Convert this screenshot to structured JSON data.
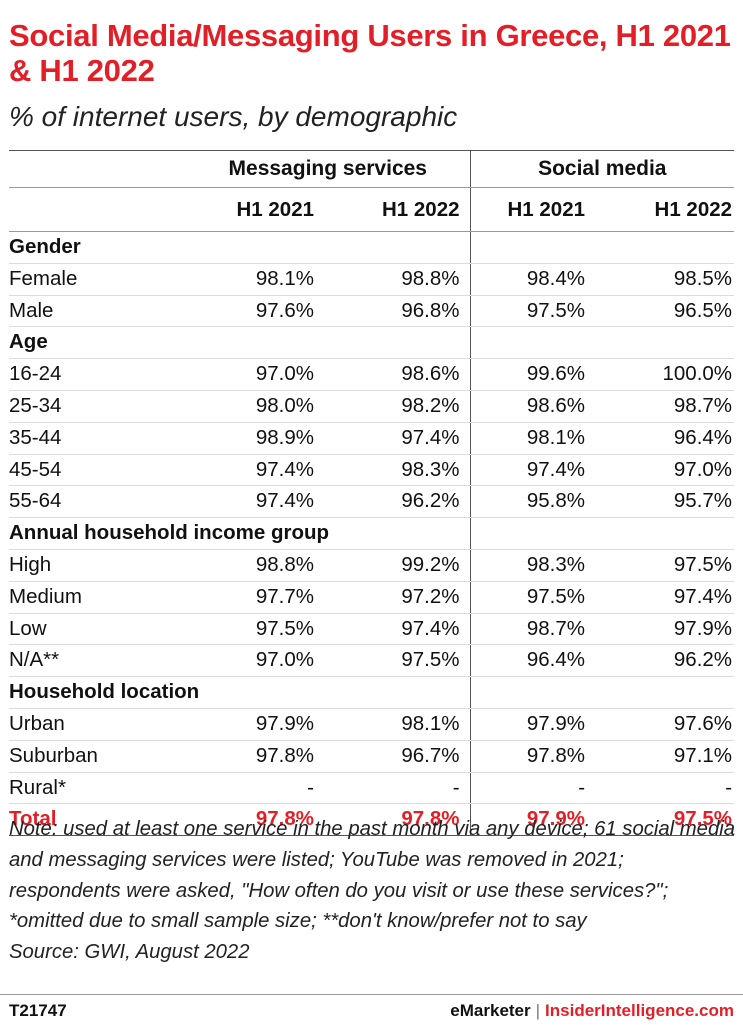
{
  "title": "Social Media/Messaging Users in Greece, H1 2021 & H1 2022",
  "subtitle": "% of internet users, by demographic",
  "chart_data": {
    "type": "table",
    "column_groups": [
      "Messaging services",
      "Social media"
    ],
    "periods": [
      "H1 2021",
      "H1 2022",
      "H1 2021",
      "H1 2022"
    ],
    "rows": [
      {
        "label": "Gender",
        "section": true
      },
      {
        "label": "Female",
        "values": [
          "98.1%",
          "98.8%",
          "98.4%",
          "98.5%"
        ]
      },
      {
        "label": "Male",
        "values": [
          "97.6%",
          "96.8%",
          "97.5%",
          "96.5%"
        ]
      },
      {
        "label": "Age",
        "section": true
      },
      {
        "label": "16-24",
        "values": [
          "97.0%",
          "98.6%",
          "99.6%",
          "100.0%"
        ]
      },
      {
        "label": "25-34",
        "values": [
          "98.0%",
          "98.2%",
          "98.6%",
          "98.7%"
        ]
      },
      {
        "label": "35-44",
        "values": [
          "98.9%",
          "97.4%",
          "98.1%",
          "96.4%"
        ]
      },
      {
        "label": "45-54",
        "values": [
          "97.4%",
          "98.3%",
          "97.4%",
          "97.0%"
        ]
      },
      {
        "label": "55-64",
        "values": [
          "97.4%",
          "96.2%",
          "95.8%",
          "95.7%"
        ]
      },
      {
        "label": "Annual household income group",
        "section": true
      },
      {
        "label": "High",
        "values": [
          "98.8%",
          "99.2%",
          "98.3%",
          "97.5%"
        ]
      },
      {
        "label": "Medium",
        "values": [
          "97.7%",
          "97.2%",
          "97.5%",
          "97.4%"
        ]
      },
      {
        "label": "Low",
        "values": [
          "97.5%",
          "97.4%",
          "98.7%",
          "97.9%"
        ]
      },
      {
        "label": "N/A**",
        "values": [
          "97.0%",
          "97.5%",
          "96.4%",
          "96.2%"
        ]
      },
      {
        "label": "Household location",
        "section": true
      },
      {
        "label": "Urban",
        "values": [
          "97.9%",
          "98.1%",
          "97.9%",
          "97.6%"
        ]
      },
      {
        "label": "Suburban",
        "values": [
          "97.8%",
          "96.7%",
          "97.8%",
          "97.1%"
        ]
      },
      {
        "label": "Rural*",
        "values": [
          "-",
          "-",
          "-",
          "-"
        ]
      },
      {
        "label": "Total",
        "values": [
          "97.8%",
          "97.8%",
          "97.9%",
          "97.5%"
        ],
        "total": true
      }
    ]
  },
  "note": "Note: used at least one service in the past month via any device; 61 social media and messaging services were listed; YouTube was removed in 2021; respondents were asked, \"How often do you visit or use these services?\"; *omitted due to small sample size; **don't know/prefer not to say",
  "source": "Source: GWI, August 2022",
  "footer": {
    "chart_id": "T21747",
    "brand_left": "eMarketer",
    "separator": "|",
    "brand_right": "InsiderIntelligence.com"
  },
  "colors": {
    "accent": "#e41e26",
    "text": "#111111"
  }
}
